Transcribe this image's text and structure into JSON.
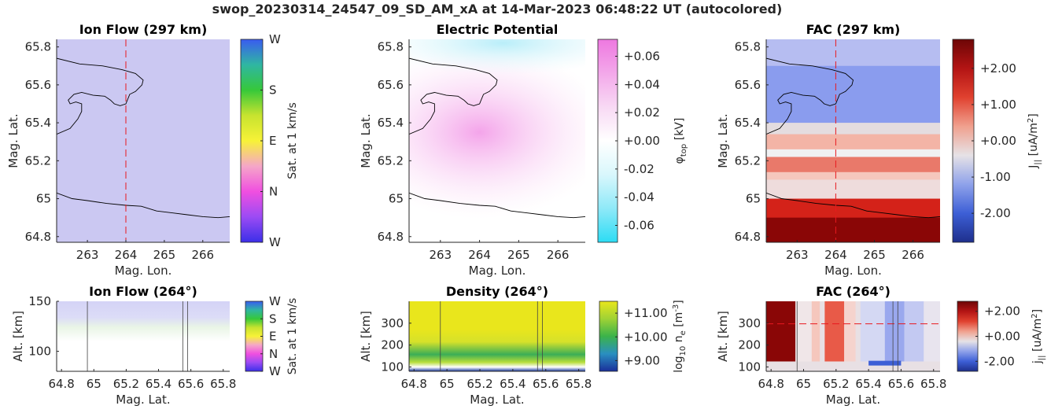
{
  "figure": {
    "title": "swop_20230314_24547_09_SD_AM_xA at 14-Mar-2023 06:48:22 UT (autocolored)"
  },
  "colors": {
    "boundary": "#000000",
    "cut_line": "#e8191f",
    "axis": "#262626"
  },
  "chart_data": [
    {
      "id": "ion-flow-map",
      "type": "heatmap",
      "title": "Ion Flow (297 km)",
      "xlabel": "Mag. Lon.",
      "ylabel": "Mag. Lat.",
      "xlim": [
        262.2,
        266.7
      ],
      "ylim": [
        64.77,
        65.84
      ],
      "xticks": [
        263,
        264,
        265,
        266
      ],
      "xtick_labels": [
        "263",
        "264",
        "265",
        "266"
      ],
      "yticks": [
        64.8,
        65,
        65.2,
        65.4,
        65.6,
        65.8
      ],
      "ytick_labels": [
        "64.8",
        "65",
        "65.2",
        "65.4",
        "65.6",
        "65.8"
      ],
      "cut_x": 264,
      "colorbar": {
        "label": "Sat. at 1 km/s",
        "ticks": [
          "W",
          "N",
          "E",
          "S",
          "W"
        ],
        "tick_positions": [
          0,
          0.25,
          0.5,
          0.75,
          1
        ],
        "colors": [
          "#3b2fe8",
          "#9b4bf4",
          "#f04fe0",
          "#f5a6c8",
          "#f7f237",
          "#c7e32f",
          "#36c83a",
          "#2fb6a2",
          "#3a5cf0"
        ]
      },
      "fill": "#cbc8f2"
    },
    {
      "id": "potential-map",
      "type": "heatmap",
      "title": "Electric Potential",
      "xlabel": "Mag. Lon.",
      "ylabel": "Mag. Lat.",
      "xlim": [
        262.2,
        266.7
      ],
      "ylim": [
        64.77,
        65.84
      ],
      "xticks": [
        263,
        264,
        265,
        266
      ],
      "xtick_labels": [
        "263",
        "264",
        "265",
        "266"
      ],
      "yticks": [
        64.8,
        65,
        65.2,
        65.4,
        65.6,
        65.8
      ],
      "ytick_labels": [
        "64.8",
        "65",
        "65.2",
        "65.4",
        "65.6",
        "65.8"
      ],
      "colorbar": {
        "label": "φtop [kV]",
        "label_main": "φ",
        "label_sub": "top",
        "label_tail": " [kV]",
        "vmin": -0.072,
        "vmax": 0.072,
        "ticks": [
          0.06,
          0.04,
          0.02,
          0.0,
          -0.02,
          -0.04,
          -0.06
        ],
        "tick_labels": [
          "+0.06",
          "+0.04",
          "+0.02",
          "+0.00",
          "-0.02",
          "-0.04",
          "-0.06"
        ],
        "colors": [
          "#2cdcf4",
          "#8fe9f8",
          "#d9f7fc",
          "#ffffff",
          "#f8d9f4",
          "#f3a8ea",
          "#ee78e0"
        ]
      }
    },
    {
      "id": "fac-map",
      "type": "heatmap",
      "title": "FAC (297 km)",
      "xlabel": "Mag. Lon.",
      "ylabel": "Mag. Lat.",
      "xlim": [
        262.2,
        266.7
      ],
      "ylim": [
        64.77,
        65.84
      ],
      "xticks": [
        263,
        264,
        265,
        266
      ],
      "xtick_labels": [
        "263",
        "264",
        "265",
        "266"
      ],
      "yticks": [
        64.8,
        65,
        65.2,
        65.4,
        65.6,
        65.8
      ],
      "ytick_labels": [
        "64.8",
        "65",
        "65.2",
        "65.4",
        "65.6",
        "65.8"
      ],
      "cut_x": 264,
      "colorbar": {
        "label": "J|| [uA/m2]",
        "label_main": "J",
        "label_sub": "||",
        "label_tail": " [uA/m",
        "label_sup": "2",
        "label_end": "]",
        "vmin": -2.8,
        "vmax": 2.8,
        "ticks": [
          2.0,
          1.0,
          0.0,
          -1.0,
          -2.0
        ],
        "tick_labels": [
          "+2.00",
          "+1.00",
          "+0.00",
          "-1.00",
          "-2.00"
        ],
        "colors": [
          "#1e2f8c",
          "#3d5fd6",
          "#8fa2ea",
          "#e6e2e6",
          "#f0a08e",
          "#e0412f",
          "#b31414",
          "#6d0606"
        ]
      }
    },
    {
      "id": "ion-flow-cut",
      "type": "heatmap",
      "title": "Ion Flow (264°)",
      "xlabel": "Mag. Lat.",
      "ylabel": "Alt. [km]",
      "xlim": [
        64.77,
        65.84
      ],
      "ylim": [
        80,
        150
      ],
      "xticks": [
        64.8,
        65,
        65.2,
        65.4,
        65.6,
        65.8
      ],
      "xtick_labels": [
        "64.8",
        "65",
        "65.2",
        "65.4",
        "65.6",
        "65.8"
      ],
      "yticks": [
        100,
        150
      ],
      "ytick_labels": [
        "100",
        "150"
      ],
      "vlines": [
        64.96,
        65.55,
        65.58
      ],
      "colorbar": {
        "label": "Sat. at 1 km/s",
        "ticks": [
          "W",
          "N",
          "E",
          "S",
          "W"
        ],
        "tick_positions": [
          0,
          0.25,
          0.5,
          0.75,
          1
        ],
        "colors": [
          "#3b2fe8",
          "#9b4bf4",
          "#f04fe0",
          "#f5a6c8",
          "#f7f237",
          "#c7e32f",
          "#36c83a",
          "#2fb6a2",
          "#3a5cf0"
        ]
      }
    },
    {
      "id": "density-cut",
      "type": "heatmap",
      "title": "Density (264°)",
      "xlabel": "Mag. Lat.",
      "ylabel": "Alt. [km]",
      "xlim": [
        64.77,
        65.84
      ],
      "ylim": [
        80,
        400
      ],
      "xticks": [
        64.8,
        65,
        65.2,
        65.4,
        65.6,
        65.8
      ],
      "xtick_labels": [
        "64.8",
        "65",
        "65.2",
        "65.4",
        "65.6",
        "65.8"
      ],
      "yticks": [
        100,
        200,
        300
      ],
      "ytick_labels": [
        "100",
        "200",
        "300"
      ],
      "vlines": [
        64.96,
        65.55,
        65.58
      ],
      "colorbar": {
        "label": "log10 ne [m-3]",
        "label_main": "log",
        "label_sub": "10",
        "label_mid": " n",
        "label_sub2": "e",
        "label_tail": " [m",
        "label_sup": "-3",
        "label_end": "]",
        "vmin": 8.55,
        "vmax": 11.5,
        "ticks": [
          11.0,
          10.0,
          9.0
        ],
        "tick_labels": [
          "+11.00",
          "+10.00",
          "+9.00"
        ],
        "colors": [
          "#1a2f9a",
          "#2a8fc0",
          "#3bb34a",
          "#9fd235",
          "#e9e61c"
        ]
      }
    },
    {
      "id": "fac-cut",
      "type": "heatmap",
      "title": "FAC (264°)",
      "xlabel": "Mag. Lat.",
      "ylabel": "Alt. [km]",
      "xlim": [
        64.77,
        65.84
      ],
      "ylim": [
        80,
        400
      ],
      "xticks": [
        64.8,
        65,
        65.2,
        65.4,
        65.6,
        65.8
      ],
      "xtick_labels": [
        "64.8",
        "65",
        "65.2",
        "65.4",
        "65.6",
        "65.8"
      ],
      "yticks": [
        100,
        200,
        300
      ],
      "ytick_labels": [
        "100",
        "200",
        "300"
      ],
      "vlines": [
        64.96,
        65.55,
        65.58
      ],
      "cut_y": 297,
      "colorbar": {
        "label": "j|| [uA/m2]",
        "label_main": "j",
        "label_sub": "||",
        "label_tail": " [uA/m",
        "label_sup": "2",
        "label_end": "]",
        "vmin": -2.8,
        "vmax": 2.8,
        "ticks": [
          2.0,
          0.0,
          -2.0
        ],
        "tick_labels": [
          "+2.00",
          "+0.00",
          "-2.00"
        ],
        "colors": [
          "#1e2f8c",
          "#3d5fd6",
          "#8fa2ea",
          "#e6e2e6",
          "#f0a08e",
          "#e0412f",
          "#b31414",
          "#6d0606"
        ]
      }
    }
  ]
}
